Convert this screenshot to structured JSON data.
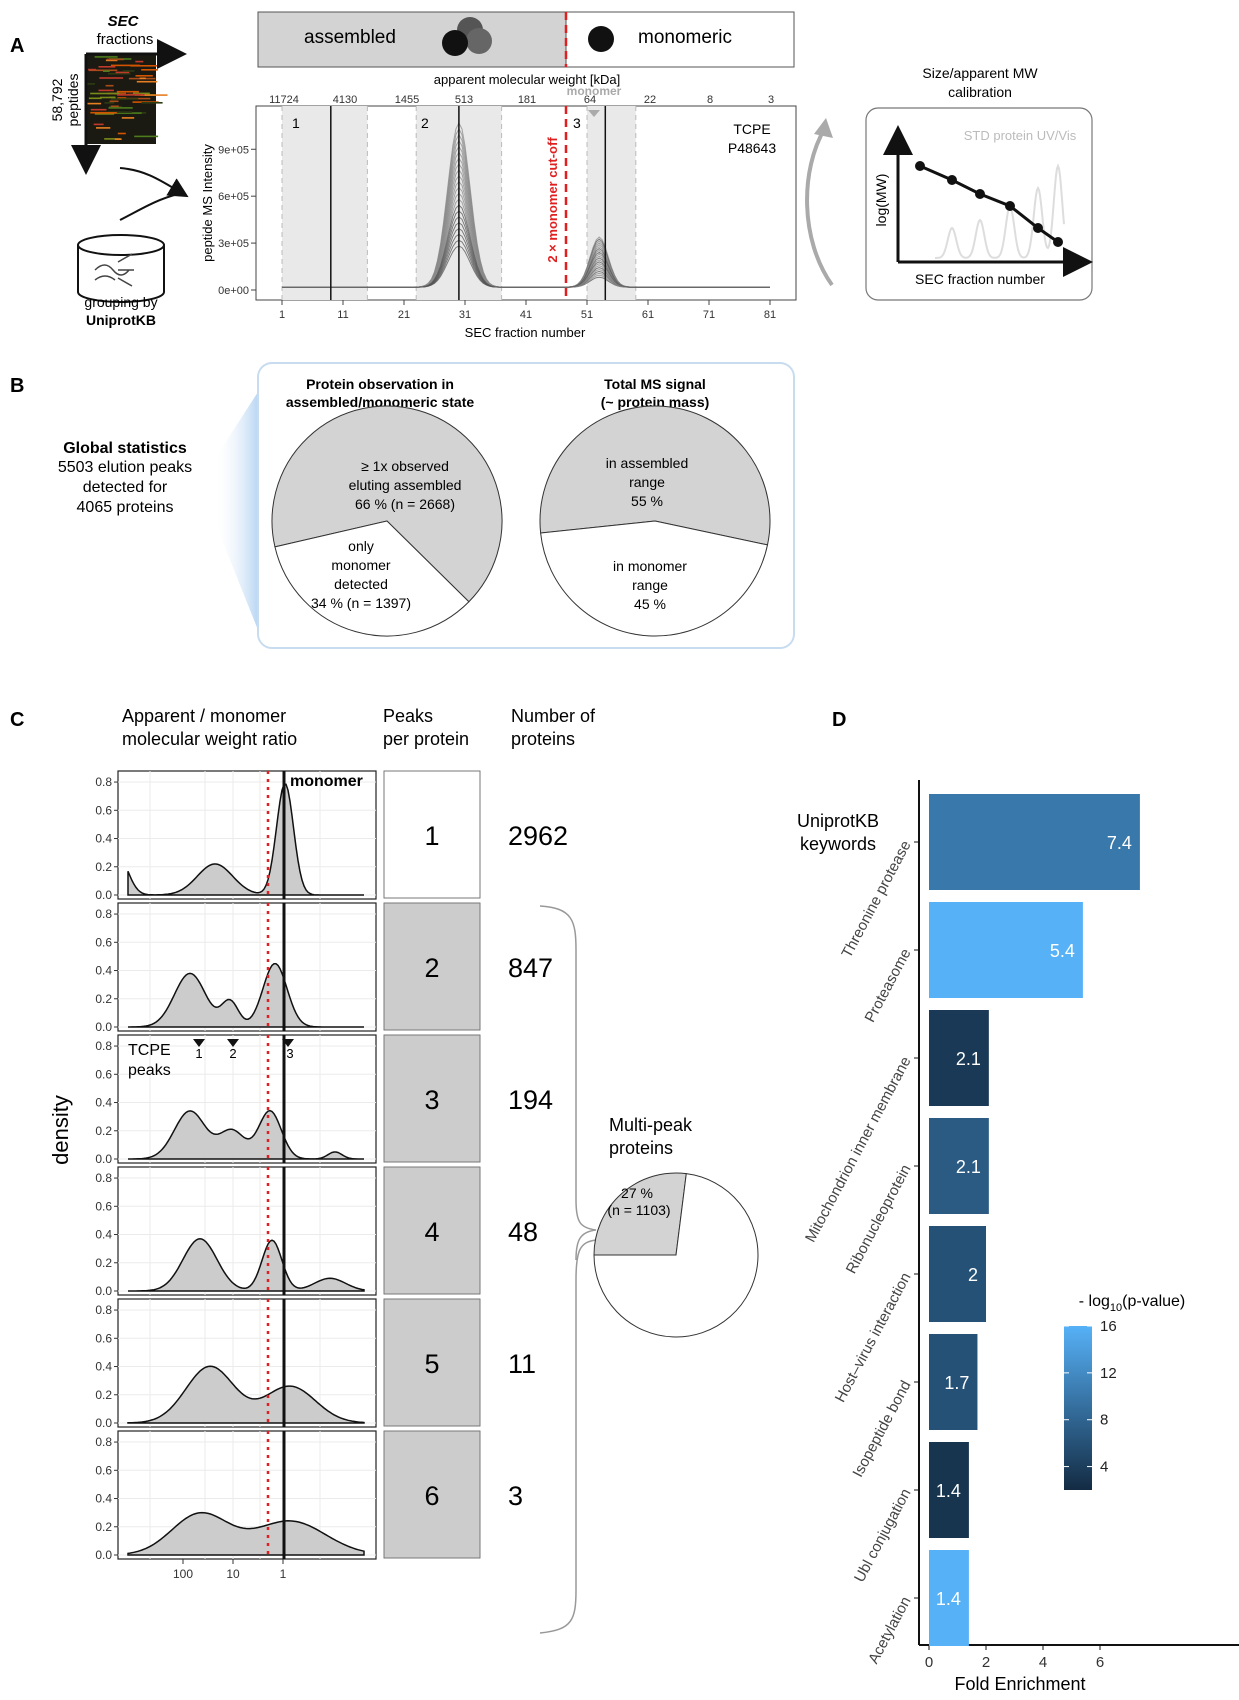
{
  "panel_labels": {
    "a": "A",
    "b": "B",
    "c": "C",
    "d": "D"
  },
  "panel_a": {
    "sec_title": "SEC",
    "sec_subtitle": "fractions",
    "peptides_count": "58,792",
    "peptides_label": "peptides",
    "grouping_line1": "grouping by",
    "grouping_line2": "UniprotKB",
    "state_assembled": "assembled",
    "state_monomeric": "monomeric",
    "chart": {
      "top_axis_title": "apparent molecular weight [kDa]",
      "top_ticks": [
        "11724",
        "4130",
        "1455",
        "513",
        "181",
        "64",
        "22",
        "8",
        "3"
      ],
      "monomer_label": "monomer",
      "y_axis_title": "peptide MS Intensity",
      "y_ticks": [
        "0e+00",
        "3e+05",
        "6e+05",
        "9e+05"
      ],
      "x_axis_title": "SEC fraction number",
      "x_ticks": [
        "1",
        "11",
        "21",
        "31",
        "41",
        "51",
        "61",
        "71",
        "81"
      ],
      "cutoff_label": "2 × monomer cut-off",
      "protein_name": "TCPE",
      "protein_id": "P48643",
      "peak_labels": [
        "1",
        "2",
        "3"
      ]
    },
    "calibration": {
      "title_line1": "Size/apparent MW",
      "title_line2": "calibration",
      "std_label": "STD protein UV/Vis",
      "y_label": "log(MW)",
      "x_label": "SEC fraction number"
    }
  },
  "panel_b": {
    "global_title": "Global statistics",
    "global_line1": "5503 elution peaks",
    "global_line2": "detected for",
    "global_line3": "4065 proteins",
    "pie1": {
      "title_line1": "Protein observation in",
      "title_line2": "assembled/monomeric state",
      "slices": [
        {
          "line1": "≥ 1x observed",
          "line2": "eluting assembled",
          "line3": "66 % (n = 2668)",
          "value": 66,
          "color": "#d3d3d3"
        },
        {
          "line1": "only",
          "line2": "monomer",
          "line3": "detected",
          "line4": "34 % (n = 1397)",
          "value": 34,
          "color": "#ffffff"
        }
      ]
    },
    "pie2": {
      "title_line1": "Total MS signal",
      "title_line2": "(~ protein mass)",
      "slices": [
        {
          "line1": "in assembled",
          "line2": "range",
          "line3": "55 %",
          "value": 55,
          "color": "#d3d3d3"
        },
        {
          "line1": "in monomer",
          "line2": "range",
          "line3": "45 %",
          "value": 45,
          "color": "#ffffff"
        }
      ]
    }
  },
  "panel_c": {
    "col1_line1": "Apparent / monomer",
    "col1_line2": "molecular weight ratio",
    "col2_line1": "Peaks",
    "col2_line2": "per protein",
    "col3_line1": "Number of",
    "col3_line2": "proteins",
    "y_axis_title": "density",
    "y_ticks": [
      "0.0",
      "0.2",
      "0.4",
      "0.6",
      "0.8"
    ],
    "x_ticks": [
      "100",
      "10",
      "1"
    ],
    "monomer_label": "monomer",
    "tcpe_line1": "TCPE",
    "tcpe_line2": "peaks",
    "tcpe_markers": [
      "1",
      "2",
      "3"
    ],
    "rows": [
      {
        "peaks": "1",
        "count": "2962"
      },
      {
        "peaks": "2",
        "count": "847"
      },
      {
        "peaks": "3",
        "count": "194"
      },
      {
        "peaks": "4",
        "count": "48"
      },
      {
        "peaks": "5",
        "count": "11"
      },
      {
        "peaks": "6",
        "count": "3"
      }
    ],
    "multi_title_line1": "Multi-peak",
    "multi_title_line2": "proteins",
    "multi_pie": {
      "value_pct": 27,
      "line1": "27 %",
      "line2": "(n = 1103)"
    }
  },
  "chart_data": [
    {
      "type": "bar",
      "orientation": "horizontal",
      "categories": [
        "Threonine protease",
        "Proteasome",
        "Mitochondrion inner membrane",
        "Ribonucleoprotein",
        "Host–virus interaction",
        "Isopeptide bond",
        "Ubl conjugation",
        "Acetylation"
      ],
      "values": [
        7.4,
        5.4,
        2.1,
        2.1,
        2.0,
        1.7,
        1.4,
        1.4
      ],
      "value_labels": [
        "7.4",
        "5.4",
        "2.1",
        "2.1",
        "2",
        "1.7",
        "1.4",
        "1.4"
      ],
      "color_values": [
        10,
        16,
        3.5,
        7,
        6,
        6,
        3,
        16
      ],
      "title": "UniprotKB keywords",
      "xlabel": "Fold Enrichment",
      "x_ticks": [
        "0",
        "2",
        "4",
        "6"
      ],
      "xlim": [
        0,
        7.5
      ],
      "legend_title": "- log10(p-value)",
      "legend_ticks": [
        "4",
        "8",
        "12",
        "16"
      ],
      "color_low": "#132b43",
      "color_high": "#56b1f7"
    }
  ]
}
